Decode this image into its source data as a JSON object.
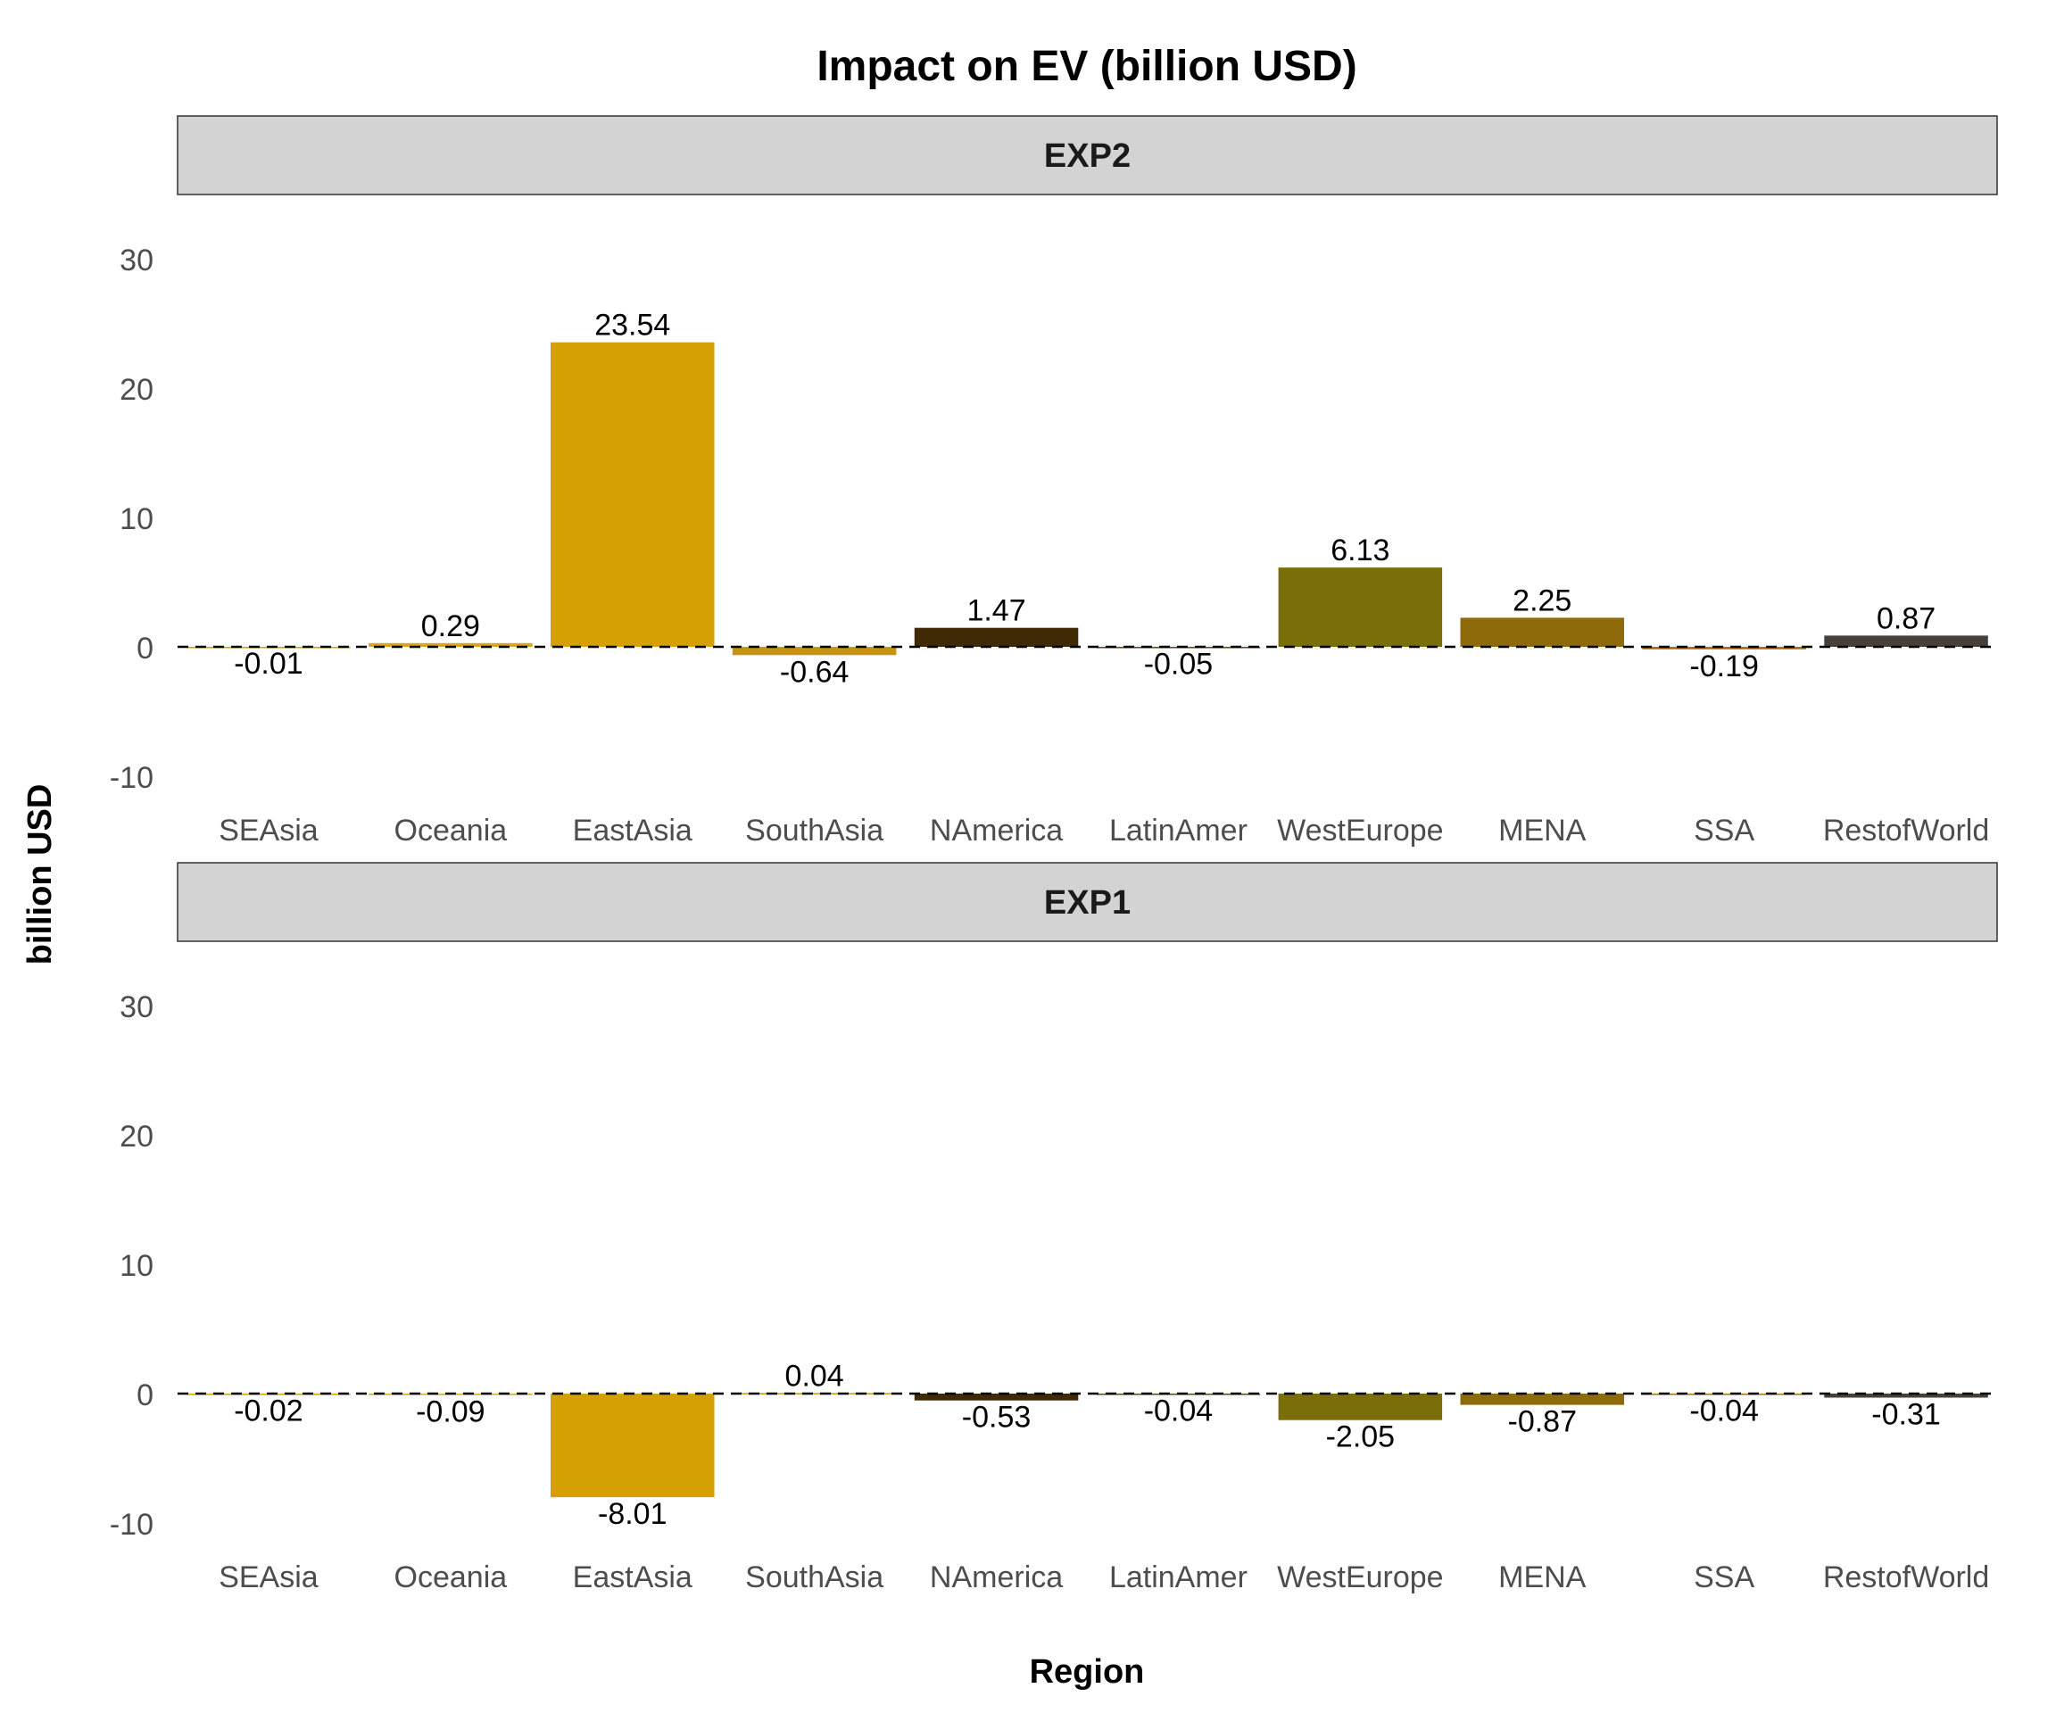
{
  "chart_data": {
    "type": "bar",
    "title": "Impact on EV (billion USD)",
    "xlabel": "Region",
    "ylabel": "billion USD",
    "ylim": [
      -10,
      30
    ],
    "yticks": [
      -10,
      0,
      10,
      20,
      30
    ],
    "grid": false,
    "legend": "none",
    "reference_line": {
      "y": 0,
      "style": "dashed"
    },
    "categories": [
      "SEAsia",
      "Oceania",
      "EastAsia",
      "SouthAsia",
      "NAmerica",
      "LatinAmer",
      "WestEurope",
      "MENA",
      "SSA",
      "RestofWorld"
    ],
    "category_colors": [
      "#d4a000",
      "#d9a520",
      "#d4a004",
      "#c79410",
      "#3f2a05",
      "#5a4a10",
      "#7a6e0a",
      "#8f6a0a",
      "#a86f12",
      "#45403a"
    ],
    "panels": [
      {
        "facet": "EXP2",
        "values": [
          -0.01,
          0.29,
          23.54,
          -0.64,
          1.47,
          -0.05,
          6.13,
          2.25,
          -0.19,
          0.87
        ],
        "labels": [
          "-0.01",
          "0.29",
          "23.54",
          "-0.64",
          "1.47",
          "-0.05",
          "6.13",
          "2.25",
          "-0.19",
          "0.87"
        ]
      },
      {
        "facet": "EXP1",
        "values": [
          -0.02,
          -0.09,
          -8.01,
          0.04,
          -0.53,
          -0.04,
          -2.05,
          -0.87,
          -0.04,
          -0.31
        ],
        "labels": [
          "-0.02",
          "-0.09",
          "-8.01",
          "0.04",
          "-0.53",
          "-0.04",
          "-2.05",
          "-0.87",
          "-0.04",
          "-0.31"
        ]
      }
    ]
  }
}
